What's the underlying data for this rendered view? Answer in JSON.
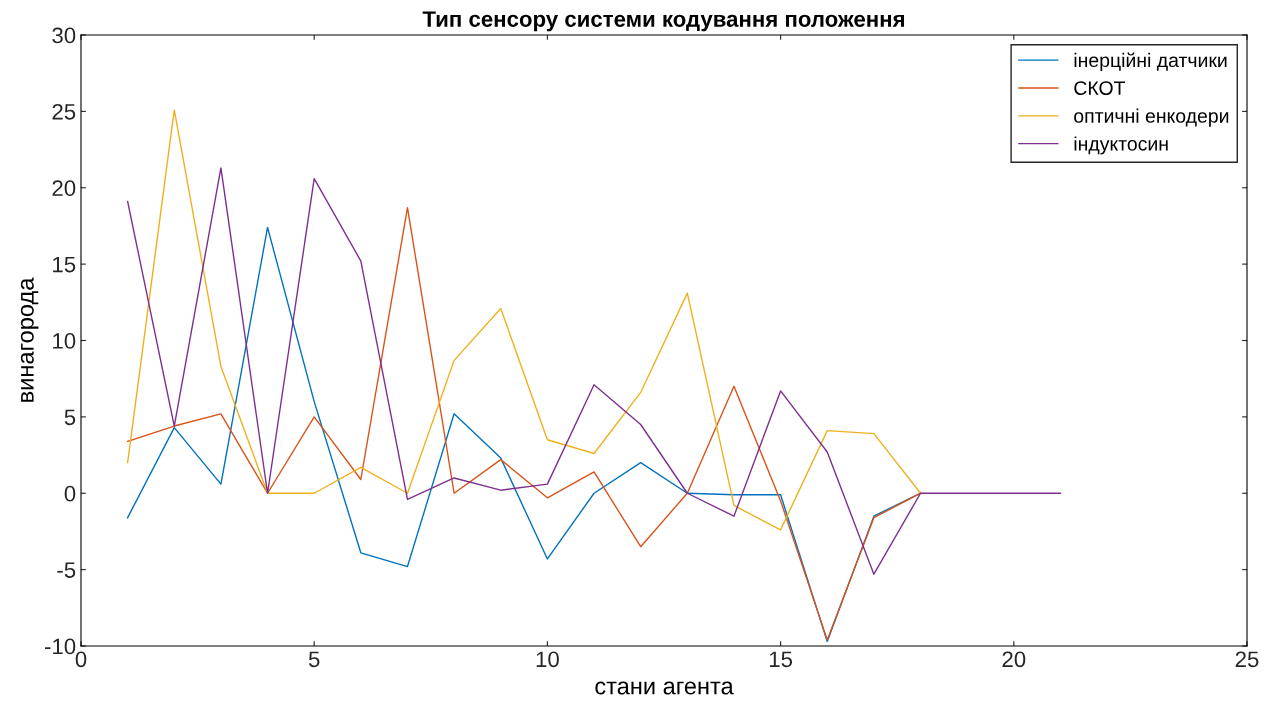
{
  "chart_data": {
    "type": "line",
    "title": "Тип сенсору системи кодування положення",
    "xlabel": "стани агента",
    "ylabel": "винагорода",
    "x": [
      1,
      2,
      3,
      4,
      5,
      6,
      7,
      8,
      9,
      10,
      11,
      12,
      13,
      14,
      15,
      16,
      17,
      18,
      19,
      20,
      21
    ],
    "xlim": [
      0,
      25
    ],
    "xticks": [
      0,
      5,
      10,
      15,
      20,
      25
    ],
    "ylim": [
      -10,
      30
    ],
    "yticks": [
      -10,
      -5,
      0,
      5,
      10,
      15,
      20,
      25,
      30
    ],
    "grid": false,
    "legend": "top right",
    "line_style": "solid",
    "marker": "none",
    "series": [
      {
        "name": "інерційні датчики",
        "color": "#0072bd",
        "values": [
          -1.6,
          4.3,
          0.6,
          17.4,
          6,
          -3.9,
          -4.8,
          5.2,
          2.3,
          -4.3,
          0,
          2,
          0,
          -0.1,
          -0.1,
          -9.7,
          -1.5,
          0,
          null,
          null,
          null
        ]
      },
      {
        "name": "СКОТ",
        "color": "#d95319",
        "values": [
          3.4,
          4.4,
          5.2,
          0,
          5,
          0.9,
          18.7,
          0,
          2.2,
          -0.3,
          1.4,
          -3.5,
          0,
          7,
          -0.5,
          -9.6,
          -1.6,
          0,
          null,
          null,
          null
        ]
      },
      {
        "name": "оптичні енкодери",
        "color": "#edb120",
        "values": [
          2,
          25.1,
          8.3,
          0,
          0,
          1.7,
          0,
          8.7,
          12.1,
          3.5,
          2.6,
          6.6,
          13.1,
          -0.8,
          -2.4,
          4.1,
          3.9,
          0,
          null,
          null,
          null
        ]
      },
      {
        "name": "індуктосин",
        "color": "#7e2f8e",
        "values": [
          19.1,
          4.4,
          21.3,
          0,
          20.6,
          15.2,
          -0.4,
          1,
          0.2,
          0.6,
          7.1,
          4.5,
          0,
          -1.5,
          6.7,
          2.7,
          -5.3,
          0,
          0,
          0,
          0
        ]
      }
    ]
  }
}
